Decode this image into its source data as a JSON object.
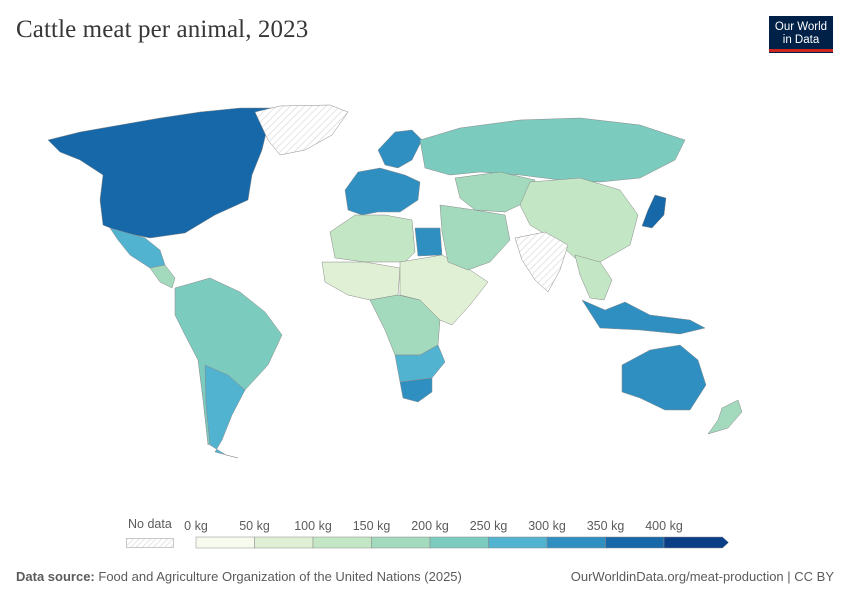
{
  "header": {
    "title": "Cattle meat per animal, 2023",
    "logo_line1": "Our World",
    "logo_line2": "in Data"
  },
  "legend": {
    "no_data_label": "No data",
    "bins": [
      {
        "label": "0 kg",
        "color": "#f7fbee"
      },
      {
        "label": "50 kg",
        "color": "#dff0d5"
      },
      {
        "label": "100 kg",
        "color": "#c3e6c4"
      },
      {
        "label": "150 kg",
        "color": "#a3d9bc"
      },
      {
        "label": "200 kg",
        "color": "#7ccbbf"
      },
      {
        "label": "250 kg",
        "color": "#52b3d0"
      },
      {
        "label": "300 kg",
        "color": "#2f8fc1"
      },
      {
        "label": "350 kg",
        "color": "#1668a8"
      },
      {
        "label": "400 kg",
        "color": "#0a3f87"
      }
    ]
  },
  "regions": [
    {
      "name": "North America",
      "bin": 7
    },
    {
      "name": "Greenland",
      "bin": -1
    },
    {
      "name": "Mexico",
      "bin": 5
    },
    {
      "name": "Central America",
      "bin": 3
    },
    {
      "name": "South America",
      "bin": 4
    },
    {
      "name": "Argentina",
      "bin": 5
    },
    {
      "name": "Western Europe",
      "bin": 6
    },
    {
      "name": "Scandinavia",
      "bin": 6
    },
    {
      "name": "Russia",
      "bin": 4
    },
    {
      "name": "Central Asia",
      "bin": 3
    },
    {
      "name": "China",
      "bin": 2
    },
    {
      "name": "India",
      "bin": -1
    },
    {
      "name": "Southeast Asia",
      "bin": 2
    },
    {
      "name": "Japan",
      "bin": 7
    },
    {
      "name": "North Africa",
      "bin": 2
    },
    {
      "name": "Egypt",
      "bin": 6
    },
    {
      "name": "West Africa",
      "bin": 1
    },
    {
      "name": "Central Africa",
      "bin": 3
    },
    {
      "name": "East Africa",
      "bin": 1
    },
    {
      "name": "Southern Africa",
      "bin": 5
    },
    {
      "name": "South Africa",
      "bin": 6
    },
    {
      "name": "Middle East",
      "bin": 3
    },
    {
      "name": "Indonesia",
      "bin": 6
    },
    {
      "name": "Australia",
      "bin": 6
    },
    {
      "name": "New Zealand",
      "bin": 3
    }
  ],
  "footer": {
    "source_label": "Data source:",
    "source_text": "Food and Agriculture Organization of the United Nations (2025)",
    "right_text": "OurWorldinData.org/meat-production | CC BY"
  }
}
